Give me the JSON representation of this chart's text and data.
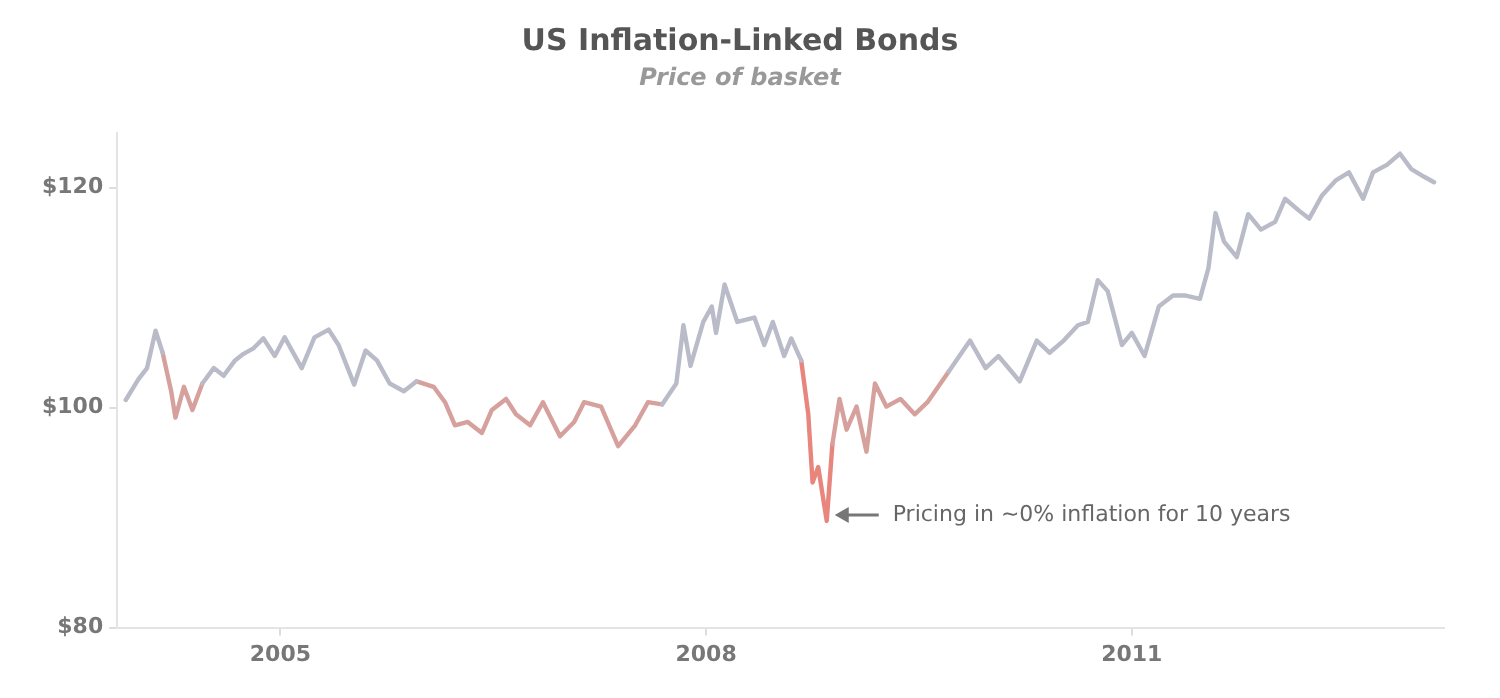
{
  "chart_data": {
    "type": "line",
    "title": "US Inflation-Linked Bonds",
    "subtitle": "Price of basket",
    "x": [
      2003.91,
      2004.0,
      2004.06,
      2004.12,
      2004.17,
      2004.23,
      2004.26,
      2004.32,
      2004.38,
      2004.45,
      2004.53,
      2004.6,
      2004.68,
      2004.74,
      2004.81,
      2004.88,
      2004.96,
      2005.03,
      2005.15,
      2005.24,
      2005.34,
      2005.41,
      2005.52,
      2005.6,
      2005.68,
      2005.77,
      2005.87,
      2005.96,
      2006.08,
      2006.16,
      2006.23,
      2006.32,
      2006.42,
      2006.49,
      2006.59,
      2006.66,
      2006.76,
      2006.85,
      2006.97,
      2007.07,
      2007.14,
      2007.26,
      2007.38,
      2007.5,
      2007.59,
      2007.69,
      2007.79,
      2007.84,
      2007.89,
      2007.98,
      2008.04,
      2008.07,
      2008.13,
      2008.22,
      2008.34,
      2008.41,
      2008.47,
      2008.55,
      2008.6,
      2008.67,
      2008.72,
      2008.75,
      2008.79,
      2008.85,
      2008.89,
      2008.94,
      2008.99,
      2009.06,
      2009.13,
      2009.19,
      2009.27,
      2009.37,
      2009.47,
      2009.56,
      2009.71,
      2009.86,
      2009.97,
      2010.06,
      2010.21,
      2010.33,
      2010.42,
      2010.52,
      2010.62,
      2010.69,
      2010.76,
      2010.83,
      2010.93,
      2011.0,
      2011.09,
      2011.19,
      2011.29,
      2011.38,
      2011.48,
      2011.54,
      2011.59,
      2011.65,
      2011.74,
      2011.82,
      2011.91,
      2012.01,
      2012.08,
      2012.18,
      2012.25,
      2012.34,
      2012.44,
      2012.53,
      2012.63,
      2012.7,
      2012.8,
      2012.89,
      2012.97,
      2013.06,
      2013.13
    ],
    "series": [
      {
        "color": "#b9bcc8",
        "values": [
          100.7,
          102.6,
          103.6,
          107.0,
          105.0,
          null,
          null,
          null,
          null,
          102.2,
          103.6,
          102.9,
          104.3,
          104.9,
          105.4,
          106.3,
          104.7,
          106.4,
          103.6,
          106.4,
          107.1,
          105.7,
          102.1,
          105.2,
          104.3,
          102.2,
          101.5,
          102.4,
          null,
          null,
          null,
          null,
          null,
          null,
          null,
          null,
          null,
          null,
          null,
          null,
          null,
          null,
          null,
          null,
          null,
          100.3,
          102.2,
          107.5,
          103.8,
          107.8,
          109.2,
          106.8,
          111.2,
          107.8,
          108.2,
          105.7,
          107.8,
          104.7,
          106.3,
          104.3,
          null,
          null,
          null,
          null,
          null,
          null,
          null,
          null,
          null,
          null,
          null,
          null,
          null,
          null,
          103.3,
          106.1,
          103.6,
          104.7,
          102.4,
          106.1,
          105.0,
          106.1,
          107.5,
          107.8,
          111.6,
          110.6,
          105.7,
          106.8,
          104.7,
          109.2,
          110.2,
          110.2,
          109.9,
          112.7,
          117.7,
          115.1,
          113.7,
          117.6,
          116.2,
          116.9,
          119.0,
          117.9,
          117.2,
          119.3,
          120.7,
          121.4,
          119.0,
          121.4,
          122.1,
          123.1,
          121.7,
          121.0,
          120.5
        ]
      },
      {
        "color": "#d6a19d",
        "values": [
          null,
          null,
          null,
          null,
          105.0,
          101.5,
          99.1,
          101.9,
          99.8,
          102.2,
          null,
          null,
          null,
          null,
          null,
          null,
          null,
          null,
          null,
          null,
          null,
          null,
          null,
          null,
          null,
          null,
          null,
          102.4,
          101.9,
          100.5,
          98.4,
          98.7,
          97.7,
          99.8,
          100.8,
          99.4,
          98.4,
          100.5,
          97.4,
          98.7,
          100.5,
          100.1,
          96.5,
          98.4,
          100.5,
          100.3,
          null,
          null,
          null,
          null,
          null,
          null,
          null,
          null,
          null,
          null,
          null,
          null,
          null,
          null,
          null,
          null,
          null,
          null,
          96.7,
          100.8,
          98.0,
          100.1,
          96.0,
          102.2,
          100.1,
          100.8,
          99.4,
          100.5,
          103.3,
          null,
          null,
          null,
          null,
          null,
          null,
          null,
          null,
          null,
          null,
          null,
          null,
          null,
          null,
          null,
          null,
          null,
          null,
          null,
          null,
          null,
          null,
          null,
          null,
          null,
          null,
          null,
          null,
          null,
          null,
          null,
          null,
          null,
          null,
          null,
          null,
          null,
          null
        ]
      },
      {
        "color": "#e8857d",
        "values": [
          null,
          null,
          null,
          null,
          null,
          null,
          null,
          null,
          null,
          null,
          null,
          null,
          null,
          null,
          null,
          null,
          null,
          null,
          null,
          null,
          null,
          null,
          null,
          null,
          null,
          null,
          null,
          null,
          null,
          null,
          null,
          null,
          null,
          null,
          null,
          null,
          null,
          null,
          null,
          null,
          null,
          null,
          null,
          null,
          null,
          null,
          null,
          null,
          null,
          null,
          null,
          null,
          null,
          null,
          null,
          null,
          null,
          null,
          null,
          104.3,
          99.4,
          93.2,
          94.6,
          89.7,
          96.7,
          null,
          null,
          null,
          null,
          null,
          null,
          null,
          null,
          null,
          null,
          null,
          null,
          null,
          null,
          null,
          null,
          null,
          null,
          null,
          null,
          null,
          null,
          null,
          null,
          null,
          null,
          null,
          null,
          null,
          null,
          null,
          null,
          null,
          null,
          null,
          null,
          null,
          null,
          null,
          null,
          null,
          null,
          null,
          null,
          null,
          null,
          null,
          null
        ]
      }
    ],
    "xlim": [
      2003.85,
      2013.2
    ],
    "xticks": [
      2005,
      2008,
      2011
    ],
    "ylim": [
      80,
      125
    ],
    "yticks": [
      {
        "value": 80,
        "label": "$80"
      },
      {
        "value": 100,
        "label": "$100"
      },
      {
        "value": 120,
        "label": "$120"
      }
    ],
    "annotations": [
      {
        "text": "Pricing in ~0% inflation for 10 years",
        "x": 2008.85,
        "y": 89.7
      }
    ],
    "grid": false,
    "legend": false
  }
}
